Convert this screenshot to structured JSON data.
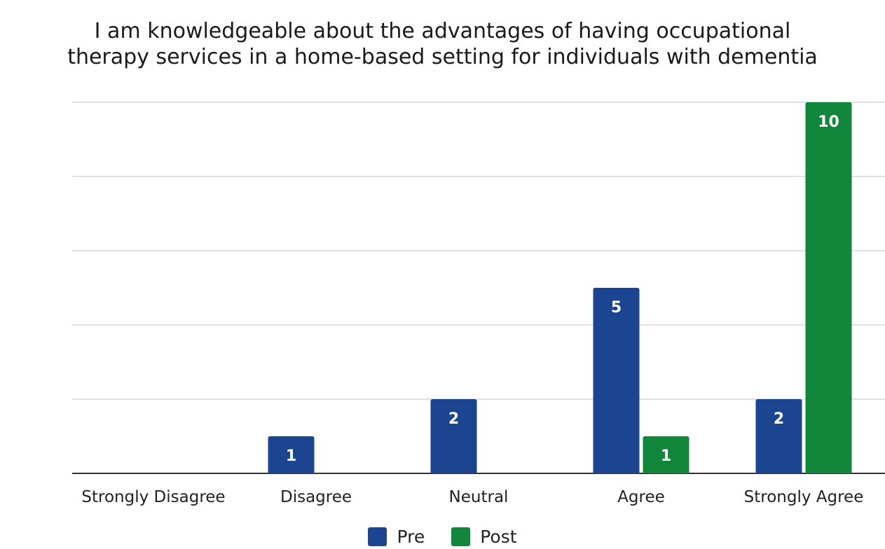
{
  "chart_data": {
    "type": "bar",
    "title_lines": [
      "I am knowledgeable about the advantages of having occupational",
      "therapy services in a home-based setting for individuals with dementia"
    ],
    "categories": [
      "Strongly Disagree",
      "Disagree",
      "Neutral",
      "Agree",
      "Strongly Agree"
    ],
    "series": [
      {
        "name": "Pre",
        "color": "#1b4591",
        "values": [
          0,
          1,
          2,
          5,
          2
        ]
      },
      {
        "name": "Post",
        "color": "#12873c",
        "values": [
          0,
          0,
          0,
          1,
          10
        ]
      }
    ],
    "ylim": [
      0,
      10
    ],
    "gridlines": [
      0,
      2,
      4,
      6,
      8,
      10
    ],
    "grid": true,
    "legend_position": "bottom"
  }
}
